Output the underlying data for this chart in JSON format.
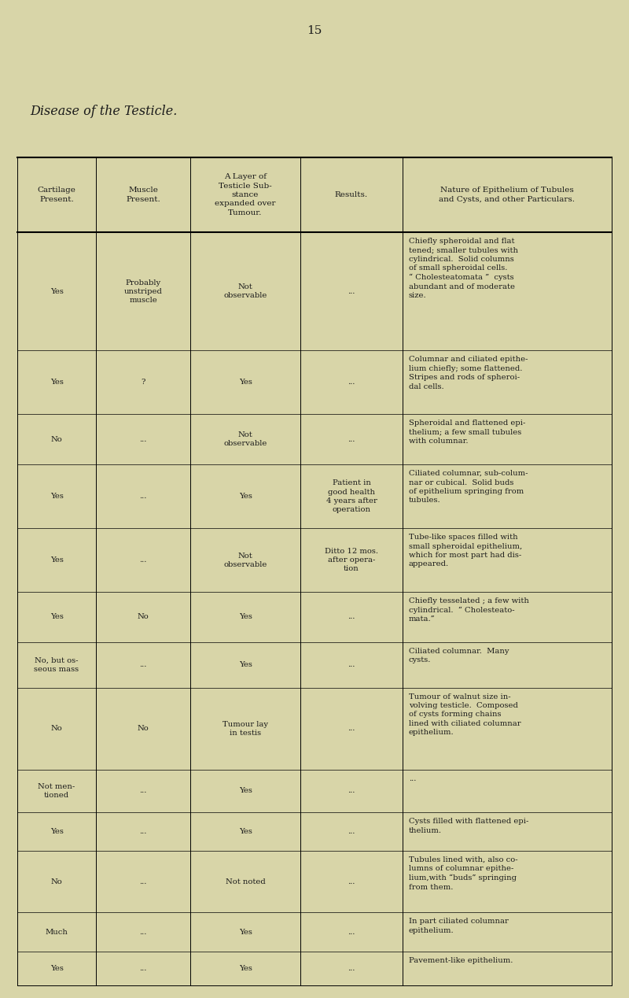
{
  "page_number": "15",
  "title": "Disease of the Testicle.",
  "background_color": "#d8d5a8",
  "text_color": "#1a1a1a",
  "col_headers": [
    "Cartilage\nPresent.",
    "Muscle\nPresent.",
    "A Layer of\nTesticle Sub-\nstance\nexpanded over\nTumour.",
    "Results.",
    "Nature of Epithelium of Tubules\nand Cysts, and other Particulars."
  ],
  "rows": [
    {
      "cartilage": "Yes",
      "muscle": "Probably\nunstriped\nmuscle",
      "layer": "Not\nobservable",
      "results": "...",
      "nature": "Chiefly spheroidal and flat\ntened; smaller tubules with\ncylindrical.  Solid columns\nof small spheroidal cells.\n“ Cholesteatomata ”  cysts\nabundant and of moderate\nsize."
    },
    {
      "cartilage": "Yes",
      "muscle": "?",
      "layer": "Yes",
      "results": "...",
      "nature": "Columnar and ciliated epithe-\nlium chiefly; some flattened.\nStripes and rods of spheroi-\ndal cells."
    },
    {
      "cartilage": "No",
      "muscle": "...",
      "layer": "Not\nobservable",
      "results": "...",
      "nature": "Spheroidal and flattened epi-\nthelium; a few small tubules\nwith columnar."
    },
    {
      "cartilage": "Yes",
      "muscle": "...",
      "layer": "Yes",
      "results": "Patient in\ngood health\n4 years after\noperation",
      "nature": "Ciliated columnar, sub-colum-\nnar or cubical.  Solid buds\nof epithelium springing from\ntubules."
    },
    {
      "cartilage": "Yes",
      "muscle": "...",
      "layer": "Not\nobservable",
      "results": "Ditto 12 mos.\nafter opera-\ntion",
      "nature": "Tube-like spaces filled with\nsmall spheroidal epithelium,\nwhich for most part had dis-\nappeared."
    },
    {
      "cartilage": "Yes",
      "muscle": "No",
      "layer": "Yes",
      "results": "...",
      "nature": "Chiefly tesselated ; a few with\ncylindrical.  “ Cholesteato-\nmata.”"
    },
    {
      "cartilage": "No, but os-\nseous mass",
      "muscle": "...",
      "layer": "Yes",
      "results": "...",
      "nature": "Ciliated columnar.  Many\ncysts."
    },
    {
      "cartilage": "No",
      "muscle": "No",
      "layer": "Tumour lay\nin testis",
      "results": "...",
      "nature": "Tumour of walnut size in-\nvolving testicle.  Composed\nof cysts forming chains\nlined with ciliated columnar\nepithelium."
    },
    {
      "cartilage": "Not men-\ntioned",
      "muscle": "...",
      "layer": "Yes",
      "results": "...",
      "nature": "..."
    },
    {
      "cartilage": "Yes",
      "muscle": "...",
      "layer": "Yes",
      "results": "...",
      "nature": "Cysts filled with flattened epi-\nthelium."
    },
    {
      "cartilage": "No",
      "muscle": "...",
      "layer": "Not noted",
      "results": "...",
      "nature": "Tubules lined with, also co-\nlumns of columnar epithe-\nlium,with “buds” springing\nfrom them."
    },
    {
      "cartilage": "Much",
      "muscle": "...",
      "layer": "Yes",
      "results": "...",
      "nature": "In part ciliated columnar\nepithelium."
    },
    {
      "cartilage": "Yes",
      "muscle": "...",
      "layer": "Yes",
      "results": "...",
      "nature": "Pavement-like epithelium."
    }
  ]
}
